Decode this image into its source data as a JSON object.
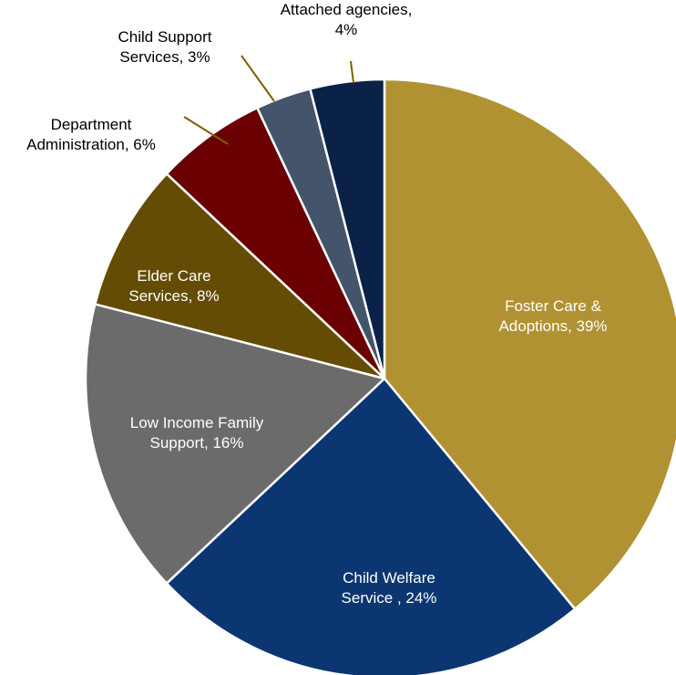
{
  "chart_data": {
    "type": "pie",
    "title": "",
    "start_angle_deg": 0,
    "direction": "clockwise",
    "slices": [
      {
        "label_lines": [
          "Foster Care &",
          "Adoptions, 39%"
        ],
        "value": 39,
        "color": "#B09232",
        "label_color": "#ffffff",
        "label_inside": true
      },
      {
        "label_lines": [
          "Child Welfare",
          "Service , 24%"
        ],
        "value": 24,
        "color": "#0C3671",
        "label_color": "#ffffff",
        "label_inside": true
      },
      {
        "label_lines": [
          "Low Income Family",
          "Support, 16%"
        ],
        "value": 16,
        "color": "#6B6B6B",
        "label_color": "#ffffff",
        "label_inside": true
      },
      {
        "label_lines": [
          "Elder Care",
          "Services, 8%"
        ],
        "value": 8,
        "color": "#644C05",
        "label_color": "#ffffff",
        "label_inside": true
      },
      {
        "label_lines": [
          "Department",
          "Administration, 6%"
        ],
        "value": 6,
        "color": "#6B0003",
        "label_color": "#000000",
        "label_inside": false
      },
      {
        "label_lines": [
          "Child Support",
          "Services, 3%"
        ],
        "value": 3,
        "color": "#44546A",
        "label_color": "#000000",
        "label_inside": false
      },
      {
        "label_lines": [
          "Attached agencies,",
          "4%"
        ],
        "value": 4,
        "color": "#0A2248",
        "label_color": "#000000",
        "label_inside": false
      }
    ],
    "leader_line_color": "#7F6000"
  }
}
